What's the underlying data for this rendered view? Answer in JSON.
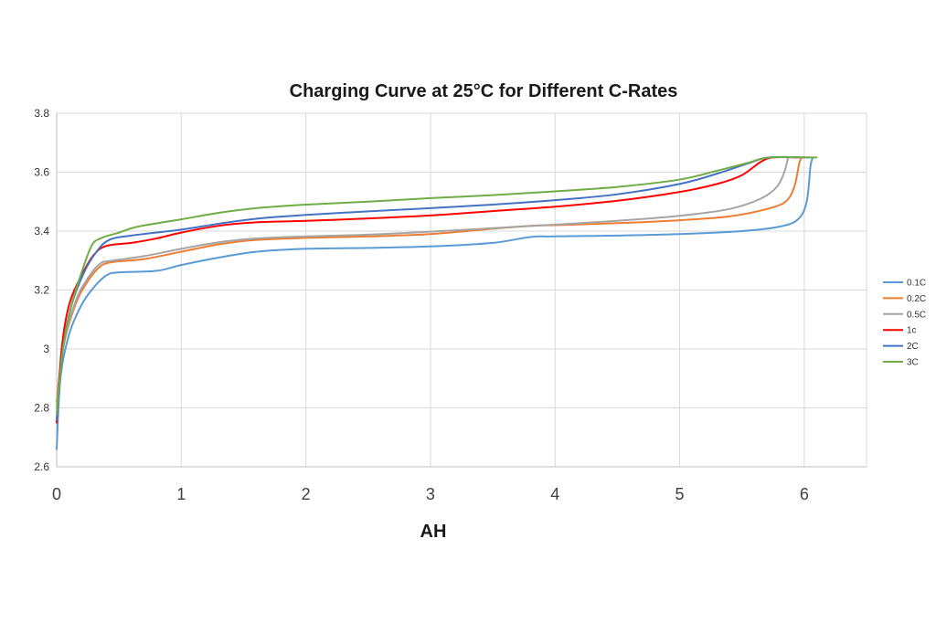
{
  "chart_data": {
    "type": "line",
    "title": "Charging Curve at 25°C for Different C-Rates",
    "xlabel": "AH",
    "ylabel": "",
    "xlim": [
      0,
      6.5
    ],
    "ylim": [
      2.6,
      3.8
    ],
    "xticks": [
      "0",
      "1",
      "2",
      "3",
      "4",
      "5",
      "6"
    ],
    "yticks": [
      "2.6",
      "2.8",
      "3",
      "3.2",
      "3.4",
      "3.6",
      "3.8"
    ],
    "grid": true,
    "legend_position": "right",
    "series": [
      {
        "name": "0.1C",
        "color": "#5b9bd5",
        "points": [
          [
            0,
            2.66
          ],
          [
            0.03,
            2.9
          ],
          [
            0.1,
            3.05
          ],
          [
            0.2,
            3.15
          ],
          [
            0.3,
            3.21
          ],
          [
            0.4,
            3.25
          ],
          [
            0.5,
            3.26
          ],
          [
            0.8,
            3.265
          ],
          [
            1.0,
            3.285
          ],
          [
            1.3,
            3.31
          ],
          [
            1.6,
            3.33
          ],
          [
            2.0,
            3.34
          ],
          [
            2.5,
            3.343
          ],
          [
            3.0,
            3.348
          ],
          [
            3.5,
            3.36
          ],
          [
            3.8,
            3.38
          ],
          [
            4.0,
            3.382
          ],
          [
            4.5,
            3.385
          ],
          [
            5.0,
            3.39
          ],
          [
            5.5,
            3.4
          ],
          [
            5.8,
            3.415
          ],
          [
            5.95,
            3.44
          ],
          [
            6.02,
            3.5
          ],
          [
            6.05,
            3.62
          ],
          [
            6.07,
            3.65
          ]
        ]
      },
      {
        "name": "0.2C",
        "color": "#ed7d31",
        "points": [
          [
            0,
            2.82
          ],
          [
            0.05,
            3.0
          ],
          [
            0.15,
            3.15
          ],
          [
            0.25,
            3.23
          ],
          [
            0.35,
            3.28
          ],
          [
            0.45,
            3.295
          ],
          [
            0.7,
            3.305
          ],
          [
            1.0,
            3.33
          ],
          [
            1.3,
            3.355
          ],
          [
            1.6,
            3.37
          ],
          [
            2.0,
            3.377
          ],
          [
            2.5,
            3.382
          ],
          [
            3.0,
            3.39
          ],
          [
            3.5,
            3.408
          ],
          [
            3.8,
            3.418
          ],
          [
            4.0,
            3.42
          ],
          [
            4.5,
            3.427
          ],
          [
            5.0,
            3.437
          ],
          [
            5.4,
            3.45
          ],
          [
            5.7,
            3.475
          ],
          [
            5.85,
            3.5
          ],
          [
            5.92,
            3.55
          ],
          [
            5.96,
            3.63
          ],
          [
            5.98,
            3.65
          ]
        ]
      },
      {
        "name": "0.5C",
        "color": "#a5a5a5",
        "points": [
          [
            0,
            2.8
          ],
          [
            0.05,
            3.0
          ],
          [
            0.15,
            3.16
          ],
          [
            0.25,
            3.24
          ],
          [
            0.35,
            3.29
          ],
          [
            0.45,
            3.3
          ],
          [
            0.7,
            3.315
          ],
          [
            1.0,
            3.34
          ],
          [
            1.3,
            3.362
          ],
          [
            1.6,
            3.375
          ],
          [
            2.0,
            3.382
          ],
          [
            2.5,
            3.388
          ],
          [
            3.0,
            3.398
          ],
          [
            3.5,
            3.41
          ],
          [
            4.0,
            3.422
          ],
          [
            4.5,
            3.435
          ],
          [
            5.0,
            3.452
          ],
          [
            5.4,
            3.475
          ],
          [
            5.65,
            3.51
          ],
          [
            5.78,
            3.55
          ],
          [
            5.84,
            3.6
          ],
          [
            5.87,
            3.65
          ]
        ]
      },
      {
        "name": "1c",
        "color": "#ff0000",
        "points": [
          [
            0,
            2.75
          ],
          [
            0.04,
            3.0
          ],
          [
            0.1,
            3.15
          ],
          [
            0.2,
            3.25
          ],
          [
            0.3,
            3.32
          ],
          [
            0.4,
            3.35
          ],
          [
            0.6,
            3.36
          ],
          [
            0.8,
            3.375
          ],
          [
            1.0,
            3.395
          ],
          [
            1.3,
            3.418
          ],
          [
            1.6,
            3.43
          ],
          [
            2.0,
            3.435
          ],
          [
            2.5,
            3.443
          ],
          [
            3.0,
            3.453
          ],
          [
            3.5,
            3.468
          ],
          [
            4.0,
            3.483
          ],
          [
            4.5,
            3.503
          ],
          [
            5.0,
            3.533
          ],
          [
            5.3,
            3.56
          ],
          [
            5.5,
            3.59
          ],
          [
            5.65,
            3.635
          ],
          [
            5.75,
            3.65
          ],
          [
            5.95,
            3.65
          ]
        ]
      },
      {
        "name": "2C",
        "color": "#4472c4",
        "points": [
          [
            0,
            2.76
          ],
          [
            0.05,
            3.0
          ],
          [
            0.12,
            3.15
          ],
          [
            0.22,
            3.26
          ],
          [
            0.32,
            3.33
          ],
          [
            0.42,
            3.37
          ],
          [
            0.6,
            3.385
          ],
          [
            1.0,
            3.405
          ],
          [
            1.3,
            3.425
          ],
          [
            1.6,
            3.442
          ],
          [
            2.0,
            3.455
          ],
          [
            2.5,
            3.467
          ],
          [
            3.0,
            3.478
          ],
          [
            3.5,
            3.49
          ],
          [
            4.0,
            3.505
          ],
          [
            4.5,
            3.525
          ],
          [
            5.0,
            3.56
          ],
          [
            5.3,
            3.595
          ],
          [
            5.55,
            3.63
          ],
          [
            5.72,
            3.65
          ],
          [
            6.05,
            3.65
          ]
        ]
      },
      {
        "name": "3C",
        "color": "#70ad47",
        "points": [
          [
            0,
            2.78
          ],
          [
            0.05,
            3.0
          ],
          [
            0.12,
            3.15
          ],
          [
            0.2,
            3.26
          ],
          [
            0.28,
            3.35
          ],
          [
            0.35,
            3.375
          ],
          [
            0.5,
            3.395
          ],
          [
            0.65,
            3.415
          ],
          [
            1.0,
            3.44
          ],
          [
            1.3,
            3.462
          ],
          [
            1.6,
            3.478
          ],
          [
            2.0,
            3.49
          ],
          [
            2.5,
            3.5
          ],
          [
            3.0,
            3.512
          ],
          [
            3.5,
            3.522
          ],
          [
            4.0,
            3.535
          ],
          [
            4.5,
            3.55
          ],
          [
            5.0,
            3.575
          ],
          [
            5.3,
            3.605
          ],
          [
            5.55,
            3.632
          ],
          [
            5.72,
            3.65
          ],
          [
            6.1,
            3.65
          ]
        ]
      }
    ]
  }
}
